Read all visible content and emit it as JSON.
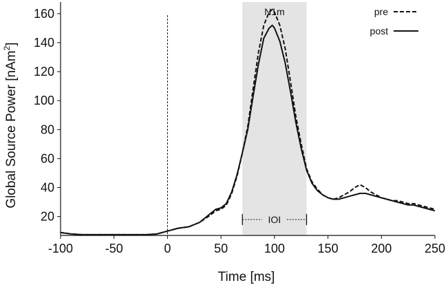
{
  "chart_data": {
    "type": "line",
    "xlabel": "Time [ms]",
    "ylabel_main": "Global Source Power [nAm",
    "ylabel_sup": "2",
    "ylabel_end": "]",
    "xlim": [
      -100,
      250
    ],
    "ylim": [
      7,
      168
    ],
    "xticks": [
      -100,
      -50,
      0,
      50,
      100,
      150,
      200,
      250
    ],
    "yticks": [
      20,
      40,
      60,
      80,
      100,
      120,
      140,
      160
    ],
    "vline_x": 0,
    "shaded_region": {
      "x": [
        70,
        130
      ],
      "label": "N1m",
      "color": "#e4e4e4"
    },
    "ioi": {
      "x": [
        70,
        130
      ],
      "y": 18,
      "label": "IOI"
    },
    "legend": {
      "position": "top-right"
    },
    "series": [
      {
        "name": "pre",
        "style": "dashed",
        "x": [
          -100,
          -90,
          -80,
          -60,
          -40,
          -20,
          -10,
          0,
          10,
          20,
          30,
          40,
          45,
          50,
          55,
          60,
          65,
          70,
          75,
          80,
          85,
          90,
          95,
          98,
          100,
          105,
          110,
          115,
          120,
          125,
          130,
          135,
          140,
          145,
          150,
          155,
          160,
          165,
          170,
          175,
          180,
          185,
          190,
          195,
          200,
          205,
          210,
          215,
          220,
          225,
          230,
          235,
          240,
          245,
          250
        ],
        "y": [
          9,
          8,
          7.5,
          7.5,
          7.5,
          7.5,
          8,
          10,
          12,
          13,
          16,
          21,
          24,
          25,
          28,
          36,
          48,
          64,
          82,
          108,
          133,
          152,
          161,
          163,
          161,
          152,
          136,
          113,
          89,
          70,
          53,
          44,
          39,
          35,
          33,
          32,
          33,
          35,
          37,
          40,
          42,
          40,
          37,
          35,
          33,
          32,
          31,
          31,
          30,
          29,
          29,
          28,
          27,
          26,
          25
        ]
      },
      {
        "name": "post",
        "style": "solid",
        "x": [
          -100,
          -90,
          -80,
          -60,
          -40,
          -20,
          -10,
          0,
          10,
          20,
          30,
          40,
          45,
          50,
          55,
          60,
          65,
          70,
          75,
          80,
          85,
          90,
          95,
          98,
          100,
          105,
          110,
          115,
          120,
          125,
          130,
          135,
          140,
          145,
          150,
          155,
          160,
          165,
          170,
          175,
          180,
          185,
          190,
          195,
          200,
          205,
          210,
          215,
          220,
          225,
          230,
          235,
          240,
          245,
          250
        ],
        "y": [
          9,
          8,
          7.5,
          7.5,
          7.5,
          7.5,
          8,
          10,
          12,
          13,
          16,
          22,
          25,
          26,
          29,
          37,
          49,
          64,
          80,
          103,
          125,
          143,
          150,
          152,
          150,
          141,
          126,
          106,
          85,
          67,
          52,
          43,
          38,
          35,
          33,
          32,
          32,
          33,
          34,
          35,
          36,
          36,
          35,
          34,
          33,
          32,
          31,
          30,
          29,
          28,
          28,
          27,
          26,
          25,
          24
        ]
      }
    ]
  }
}
